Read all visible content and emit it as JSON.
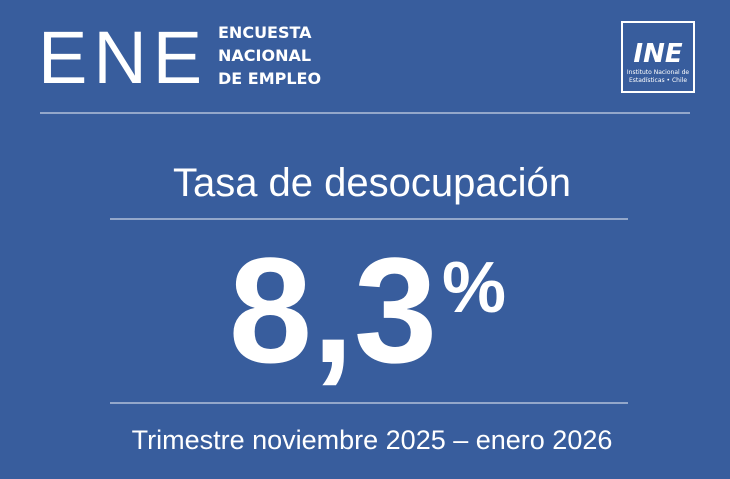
{
  "header": {
    "title": "ENE",
    "subtitle_lines": [
      "ENCUESTA",
      "NACIONAL",
      "DE EMPLEO"
    ]
  },
  "logo": {
    "mark": "INE",
    "lines": [
      "Instituto Nacional de",
      "Estadísticas • Chile"
    ]
  },
  "indicator": {
    "label": "Tasa de desocupación",
    "value": "8,3",
    "unit": "%",
    "period": "Trimestre noviembre 2025 – enero 2026"
  }
}
